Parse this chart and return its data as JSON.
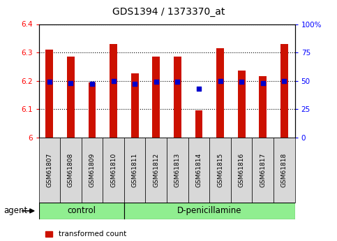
{
  "title": "GDS1394 / 1373370_at",
  "samples": [
    "GSM61807",
    "GSM61808",
    "GSM61809",
    "GSM61810",
    "GSM61811",
    "GSM61812",
    "GSM61813",
    "GSM61814",
    "GSM61815",
    "GSM61816",
    "GSM61817",
    "GSM61818"
  ],
  "transformed_counts": [
    6.31,
    6.285,
    6.195,
    6.33,
    6.225,
    6.285,
    6.285,
    6.095,
    6.315,
    6.235,
    6.215,
    6.33
  ],
  "percentile_ranks": [
    49,
    48,
    47,
    50,
    47,
    49,
    49,
    43,
    50,
    49,
    48,
    50
  ],
  "bar_color": "#CC1100",
  "dot_color": "#0000CC",
  "ylim_left": [
    6.0,
    6.4
  ],
  "ylim_right": [
    0,
    100
  ],
  "yticks_left": [
    6.0,
    6.1,
    6.2,
    6.3,
    6.4
  ],
  "ytick_labels_left": [
    "6",
    "6.1",
    "6.2",
    "6.3",
    "6.4"
  ],
  "yticks_right": [
    0,
    25,
    50,
    75,
    100
  ],
  "ytick_labels_right": [
    "0",
    "25",
    "50",
    "75",
    "100%"
  ],
  "bar_width": 0.35,
  "group_split": 4,
  "group_green": "#90EE90",
  "tick_box_gray": "#d8d8d8",
  "agent_label": "agent"
}
